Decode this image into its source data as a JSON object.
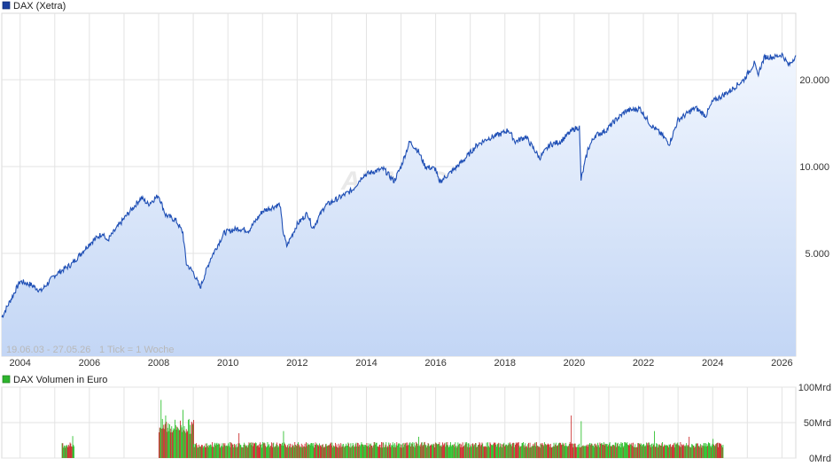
{
  "chart_data": [
    {
      "type": "area",
      "title": "DAX (Xetra)",
      "legend_color": "#1a3f9e",
      "line_color": "#1f4fb5",
      "fill_color": "#c3d6f5",
      "range_label": "19.06.03 - 27.05.26",
      "tick_label": "1 Tick = 1 Woche",
      "watermark": "ARIVA.DE",
      "y_scale": "log",
      "ylim": [
        2200,
        34000
      ],
      "xlim": [
        2003.47,
        2026.4
      ],
      "y_ticks": [
        {
          "value": 5000,
          "label": "5.000"
        },
        {
          "value": 10000,
          "label": "10.000"
        },
        {
          "value": 20000,
          "label": "20.000"
        }
      ],
      "x_ticks": [
        "2004",
        "2006",
        "2008",
        "2010",
        "2012",
        "2014",
        "2016",
        "2018",
        "2020",
        "2022",
        "2024",
        "2026"
      ],
      "grid": true,
      "series": [
        {
          "points": [
            [
              2003.47,
              3000
            ],
            [
              2003.7,
              3400
            ],
            [
              2004.0,
              4000
            ],
            [
              2004.3,
              3900
            ],
            [
              2004.6,
              3700
            ],
            [
              2005.0,
              4200
            ],
            [
              2005.5,
              4600
            ],
            [
              2006.0,
              5400
            ],
            [
              2006.4,
              5900
            ],
            [
              2006.5,
              5500
            ],
            [
              2007.0,
              6600
            ],
            [
              2007.5,
              7800
            ],
            [
              2007.7,
              7400
            ],
            [
              2008.0,
              7950
            ],
            [
              2008.2,
              6800
            ],
            [
              2008.5,
              6500
            ],
            [
              2008.7,
              5900
            ],
            [
              2008.8,
              4600
            ],
            [
              2009.0,
              4300
            ],
            [
              2009.2,
              3800
            ],
            [
              2009.5,
              4800
            ],
            [
              2009.9,
              5900
            ],
            [
              2010.3,
              6100
            ],
            [
              2010.6,
              6000
            ],
            [
              2011.0,
              7000
            ],
            [
              2011.5,
              7400
            ],
            [
              2011.6,
              5900
            ],
            [
              2011.7,
              5300
            ],
            [
              2012.0,
              6300
            ],
            [
              2012.3,
              6900
            ],
            [
              2012.45,
              6100
            ],
            [
              2012.8,
              7300
            ],
            [
              2013.3,
              7900
            ],
            [
              2013.6,
              8300
            ],
            [
              2013.9,
              9300
            ],
            [
              2014.2,
              9600
            ],
            [
              2014.5,
              9800
            ],
            [
              2014.8,
              8900
            ],
            [
              2015.0,
              10000
            ],
            [
              2015.25,
              12200
            ],
            [
              2015.5,
              11300
            ],
            [
              2015.7,
              10000
            ],
            [
              2016.0,
              9800
            ],
            [
              2016.1,
              8800
            ],
            [
              2016.5,
              9700
            ],
            [
              2016.8,
              10500
            ],
            [
              2017.2,
              11900
            ],
            [
              2017.5,
              12500
            ],
            [
              2017.9,
              13000
            ],
            [
              2018.1,
              13400
            ],
            [
              2018.3,
              12200
            ],
            [
              2018.6,
              12700
            ],
            [
              2018.9,
              11200
            ],
            [
              2019.0,
              10700
            ],
            [
              2019.3,
              11900
            ],
            [
              2019.6,
              12200
            ],
            [
              2019.9,
              13200
            ],
            [
              2020.0,
              13500
            ],
            [
              2020.15,
              13700
            ],
            [
              2020.2,
              9000
            ],
            [
              2020.4,
              11500
            ],
            [
              2020.6,
              12800
            ],
            [
              2020.9,
              13300
            ],
            [
              2021.2,
              14500
            ],
            [
              2021.5,
              15600
            ],
            [
              2021.9,
              15900
            ],
            [
              2022.2,
              14000
            ],
            [
              2022.5,
              13000
            ],
            [
              2022.75,
              12000
            ],
            [
              2023.0,
              14500
            ],
            [
              2023.5,
              16000
            ],
            [
              2023.8,
              15000
            ],
            [
              2024.0,
              16800
            ],
            [
              2024.5,
              18300
            ],
            [
              2024.9,
              20000
            ],
            [
              2025.2,
              22800
            ],
            [
              2025.3,
              20800
            ],
            [
              2025.5,
              24000
            ],
            [
              2025.8,
              24000
            ],
            [
              2026.0,
              24500
            ],
            [
              2026.2,
              22400
            ],
            [
              2026.4,
              24300
            ]
          ]
        }
      ]
    },
    {
      "type": "bar",
      "title": "DAX Volumen in Euro",
      "legend_color": "#2db52d",
      "up_color": "#33c233",
      "down_color": "#cc3333",
      "ylim": [
        0,
        100
      ],
      "y_ticks": [
        {
          "value": 0,
          "label": "0Mrd"
        },
        {
          "value": 50,
          "label": "50Mrd"
        },
        {
          "value": 100,
          "label": "100Mrd"
        }
      ],
      "grid": true,
      "segments": [
        {
          "x_from": 2005.2,
          "x_to": 2005.55,
          "base": 17,
          "amplitude": 8,
          "peaks": [
            {
              "x": 2005.5,
              "value": 31
            }
          ]
        },
        {
          "x_from": 2008.0,
          "x_to": 2009.0,
          "base": 40,
          "amplitude": 22,
          "peaks": [
            {
              "x": 2008.05,
              "value": 82
            },
            {
              "x": 2008.7,
              "value": 68
            },
            {
              "x": 2008.2,
              "value": 60
            }
          ]
        },
        {
          "x_from": 2009.0,
          "x_to": 2024.3,
          "base": 17,
          "amplitude": 8,
          "peaks": [
            {
              "x": 2010.3,
              "value": 35
            },
            {
              "x": 2011.6,
              "value": 38
            },
            {
              "x": 2015.5,
              "value": 30
            },
            {
              "x": 2019.9,
              "value": 60
            },
            {
              "x": 2020.2,
              "value": 52
            },
            {
              "x": 2022.3,
              "value": 38
            },
            {
              "x": 2023.3,
              "value": 30
            },
            {
              "x": 2024.0,
              "value": 27
            }
          ]
        }
      ]
    }
  ]
}
